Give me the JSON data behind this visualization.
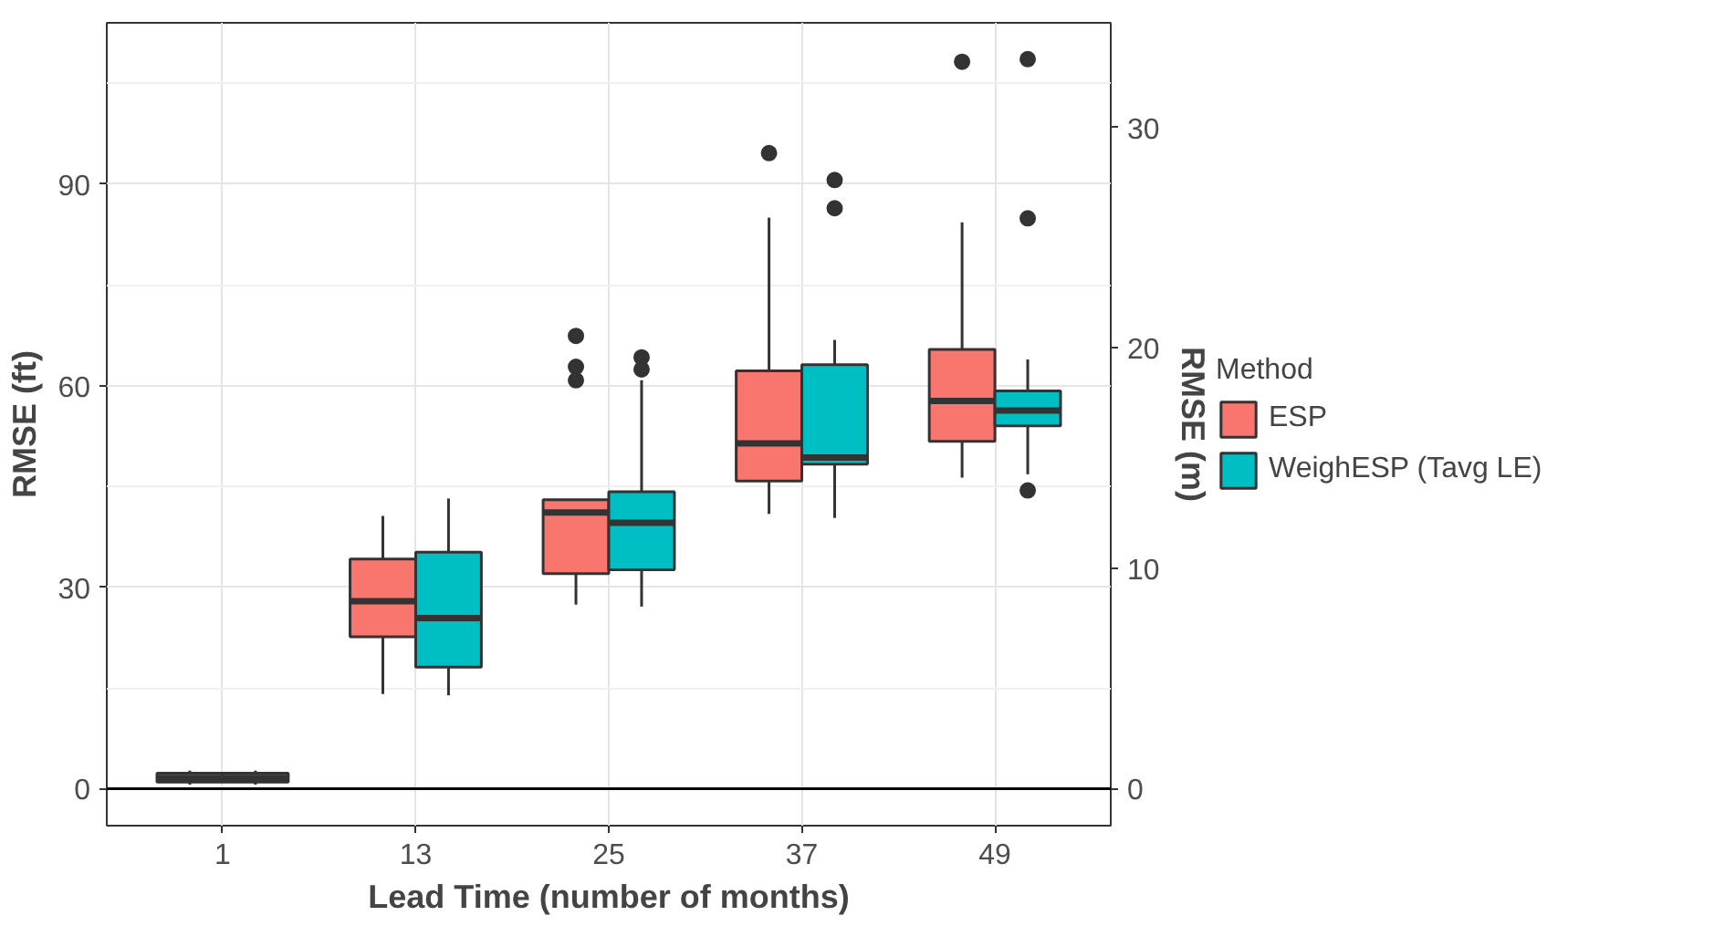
{
  "chart_data": {
    "type": "box",
    "xlabel": "Lead Time (number of months)",
    "ylabel": "RMSE (ft)",
    "y2label": "RMSE (m)",
    "legend_title": "Method",
    "categories": [
      "1",
      "13",
      "25",
      "37",
      "49"
    ],
    "series": [
      {
        "name": "ESP",
        "color": "#f8766d",
        "boxes": [
          {
            "low": 0.6,
            "q1": 1.0,
            "median": 1.6,
            "q3": 2.3,
            "high": 2.7
          },
          {
            "low": 14.1,
            "q1": 22.6,
            "median": 27.9,
            "q3": 34.2,
            "high": 40.6
          },
          {
            "low": 27.4,
            "q1": 32.0,
            "median": 41.1,
            "q3": 43.0,
            "high": 43.0,
            "outliers": [
              67.4,
              62.8,
              60.8
            ]
          },
          {
            "low": 40.9,
            "q1": 45.8,
            "median": 51.4,
            "q3": 62.2,
            "high": 85.0,
            "outliers": [
              94.6
            ]
          },
          {
            "low": 46.3,
            "q1": 51.7,
            "median": 57.7,
            "q3": 65.4,
            "high": 84.3,
            "outliers": [
              108.2
            ]
          }
        ]
      },
      {
        "name": "WeighESP (Tavg LE)",
        "color": "#00bfc4",
        "boxes": [
          {
            "low": 0.6,
            "q1": 1.0,
            "median": 1.6,
            "q3": 2.3,
            "high": 2.7
          },
          {
            "low": 13.9,
            "q1": 18.1,
            "median": 25.4,
            "q3": 35.2,
            "high": 43.2
          },
          {
            "low": 27.1,
            "q1": 32.6,
            "median": 39.6,
            "q3": 44.2,
            "high": 60.8,
            "outliers": [
              64.2,
              62.4
            ]
          },
          {
            "low": 40.3,
            "q1": 48.3,
            "median": 49.3,
            "q3": 63.1,
            "high": 66.8,
            "outliers": [
              90.6,
              86.4
            ]
          },
          {
            "low": 46.8,
            "q1": 54.0,
            "median": 56.3,
            "q3": 59.2,
            "high": 63.9,
            "outliers": [
              108.6,
              84.9,
              44.4
            ]
          }
        ]
      }
    ],
    "ylim": [
      -5.5,
      114
    ],
    "yticks": [
      0,
      30,
      60,
      90
    ],
    "y2lim": [
      -1.68,
      34.75
    ],
    "y2ticks": [
      0,
      10,
      20,
      30
    ],
    "ref_lines": [
      {
        "axis": "y",
        "value": 0,
        "color": "#000000"
      }
    ],
    "grid": true,
    "legend": "right"
  }
}
